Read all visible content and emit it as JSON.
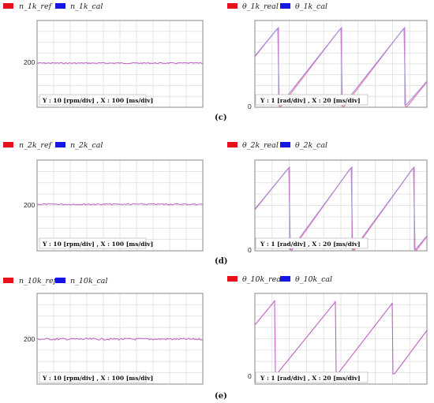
{
  "colors": {
    "ref": "#e8101a",
    "cal": "#1515e6",
    "trace": "#c060c8",
    "grid": "#d8d8d8",
    "frame": "#888888"
  },
  "charts": [
    {
      "id": "n1",
      "legend": [
        "n_1k_ref",
        "n_1k_cal"
      ],
      "ytick": "200",
      "scale": "Y :  10 [rpm/div] , X : 100 [ms/div]"
    },
    {
      "id": "t1",
      "legend": [
        "θ_1k_real",
        "θ_1k_cal"
      ],
      "ytick": "0",
      "scale": "Y :  1 [rad/div] , X : 20 [ms/div]"
    },
    {
      "id": "n2",
      "legend": [
        "n_2k_ref",
        "n_2k_cal"
      ],
      "ytick": "200",
      "scale": "Y :  10 [rpm/div] , X : 100 [ms/div]"
    },
    {
      "id": "t2",
      "legend": [
        "θ_2k_real",
        "θ_2k_cal"
      ],
      "ytick": "0",
      "scale": "Y :  1 [rad/div] , X : 20 [ms/div]"
    },
    {
      "id": "n10",
      "legend": [
        "n_10k_ref",
        "n_10k_cal"
      ],
      "ytick": "200",
      "scale": "Y :  10 [rpm/div] , X : 100 [ms/div]"
    },
    {
      "id": "t10",
      "legend": [
        "θ_10k_real",
        "θ_10k_cal"
      ],
      "ytick": "0",
      "scale": "Y :  1 [rad/div] , X : 20 [ms/div]"
    }
  ],
  "captions": [
    "(c)",
    "(d)",
    "(e)"
  ],
  "chart_data": [
    {
      "type": "line",
      "series": [
        {
          "name": "n_1k_ref",
          "values": [
            200,
            200
          ]
        },
        {
          "name": "n_1k_cal",
          "values": [
            200,
            200
          ]
        }
      ],
      "x": [
        0,
        1
      ],
      "ylabel": "",
      "xlabel": ""
    },
    {
      "type": "line",
      "series": [
        {
          "name": "θ_1k_real",
          "values": []
        },
        {
          "name": "θ_1k_cal",
          "values": []
        }
      ],
      "shape": "sawtooth",
      "ylabel": "",
      "xlabel": ""
    },
    {
      "type": "line",
      "series": [
        {
          "name": "n_2k_ref",
          "values": [
            200,
            200
          ]
        },
        {
          "name": "n_2k_cal",
          "values": [
            200,
            200
          ]
        }
      ],
      "x": [
        0,
        1
      ],
      "ylabel": "",
      "xlabel": ""
    },
    {
      "type": "line",
      "series": [
        {
          "name": "θ_2k_real",
          "values": []
        },
        {
          "name": "θ_2k_cal",
          "values": []
        }
      ],
      "shape": "sawtooth",
      "ylabel": "",
      "xlabel": ""
    },
    {
      "type": "line",
      "series": [
        {
          "name": "n_10k_ref",
          "values": [
            200,
            200
          ]
        },
        {
          "name": "n_10k_cal",
          "values": [
            200,
            200
          ]
        }
      ],
      "x": [
        0,
        1
      ],
      "ylabel": "",
      "xlabel": ""
    },
    {
      "type": "line",
      "series": [
        {
          "name": "θ_10k_real",
          "values": []
        },
        {
          "name": "θ_10k_cal",
          "values": []
        }
      ],
      "shape": "sawtooth",
      "ylabel": "",
      "xlabel": ""
    }
  ]
}
